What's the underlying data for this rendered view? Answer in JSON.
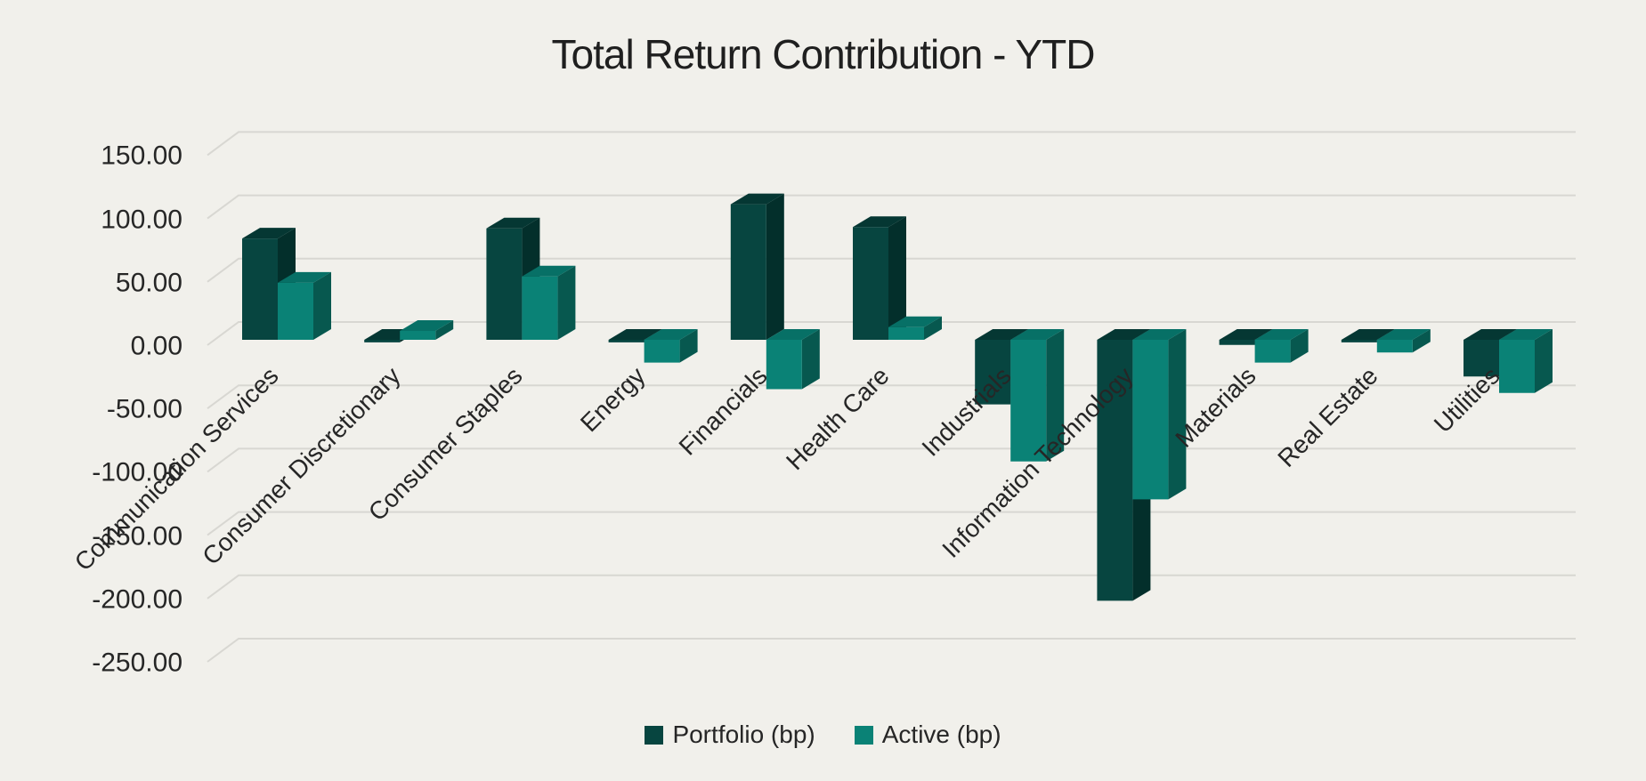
{
  "colors": {
    "background": "#f1f0eb",
    "gridline": "#d8d7d2",
    "title_text": "#1f1f1f",
    "axis_text": "#262626",
    "portfolio_front": "#074540",
    "portfolio_top": "#053733",
    "portfolio_side": "#032f2b",
    "active_front": "#0a8276",
    "active_top": "#077066",
    "active_side": "#07584f"
  },
  "legend": {
    "position": "bottom",
    "items": [
      {
        "label": "Portfolio (bp)",
        "color": "#074540"
      },
      {
        "label": "Active (bp)",
        "color": "#0a8276"
      }
    ]
  },
  "chart_data": {
    "type": "bar",
    "variant": "3d-clustered-column",
    "title": "Total Return Contribution - YTD",
    "categories": [
      "Communication Services",
      "Consumer Discretionary",
      "Consumer Staples",
      "Energy",
      "Financials",
      "Health Care",
      "Industrials",
      "Information Technology",
      "Materials",
      "Real Estate",
      "Utilities"
    ],
    "series": [
      {
        "name": "Portfolio (bp)",
        "color": "#074540",
        "color_top": "#053733",
        "color_side": "#032f2b",
        "values": [
          80,
          -2,
          88,
          -2,
          107,
          89,
          -51,
          -206,
          -4,
          -2,
          -29
        ]
      },
      {
        "name": "Active (bp)",
        "color": "#0a8276",
        "color_top": "#077066",
        "color_side": "#07584f",
        "values": [
          45,
          7,
          50,
          -18,
          -39,
          10,
          -96,
          -126,
          -18,
          -10,
          -42
        ]
      }
    ],
    "ylabel": "",
    "xlabel": "",
    "ylim": [
      -250,
      150
    ],
    "y_ticks": [
      150,
      100,
      50,
      0,
      -50,
      -100,
      -150,
      -200,
      -250
    ],
    "y_tick_labels": [
      "150.00",
      "100.00",
      "50.00",
      "0.00",
      "-50.00",
      "-100.00",
      "-150.00",
      "-200.00",
      "-250.00"
    ],
    "grid": "on",
    "legend_position": "bottom"
  }
}
